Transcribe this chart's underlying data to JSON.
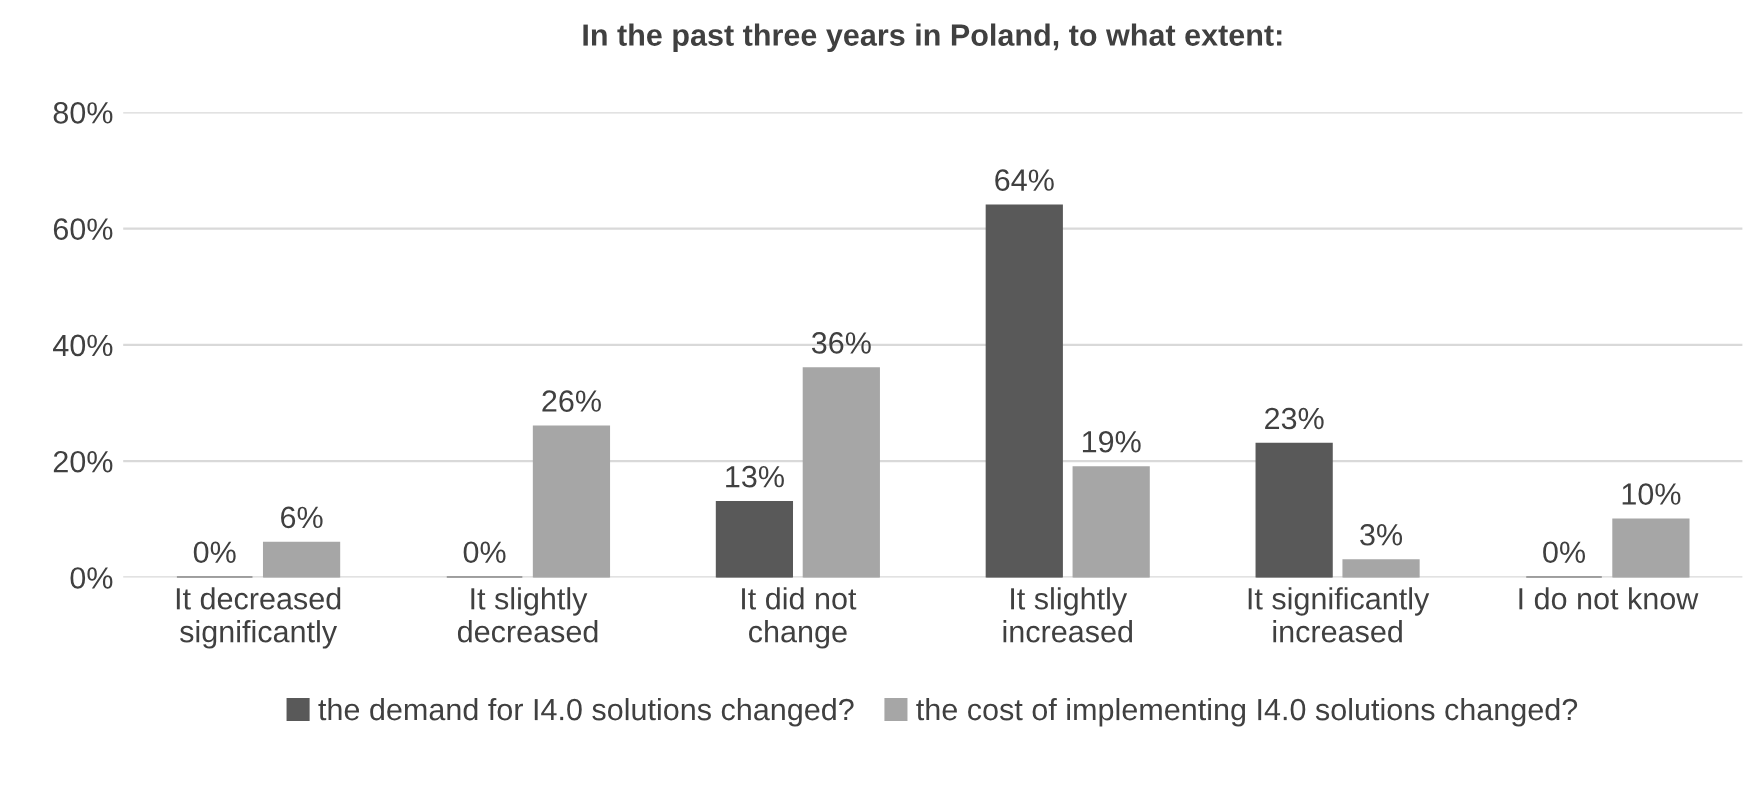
{
  "chart_data": {
    "type": "bar",
    "title": "In the past three years in Poland, to what extent:",
    "categories": [
      "It decreased\nsignificantly",
      "It slightly\ndecreased",
      "It did not\nchange",
      "It slightly\nincreased",
      "It significantly\nincreased",
      "I do not know"
    ],
    "series": [
      {
        "name": "the demand for I4.0 solutions changed?",
        "color": "#595959",
        "values": [
          0,
          0,
          13,
          64,
          23,
          0
        ],
        "value_labels": [
          "0%",
          "0%",
          "13%",
          "64%",
          "23%",
          "0%"
        ]
      },
      {
        "name": "the cost of implementing I4.0 solutions changed?",
        "color": "#a6a6a6",
        "values": [
          6,
          26,
          36,
          19,
          3,
          10
        ],
        "value_labels": [
          "6%",
          "26%",
          "36%",
          "19%",
          "3%",
          "10%"
        ]
      }
    ],
    "ylim": [
      0,
      80
    ],
    "yticks": [
      {
        "value": 0,
        "label": "0%"
      },
      {
        "value": 20,
        "label": "20%"
      },
      {
        "value": 40,
        "label": "40%"
      },
      {
        "value": 60,
        "label": "60%"
      },
      {
        "value": 80,
        "label": "80%"
      }
    ],
    "grid": "y",
    "legend": "bottom"
  }
}
